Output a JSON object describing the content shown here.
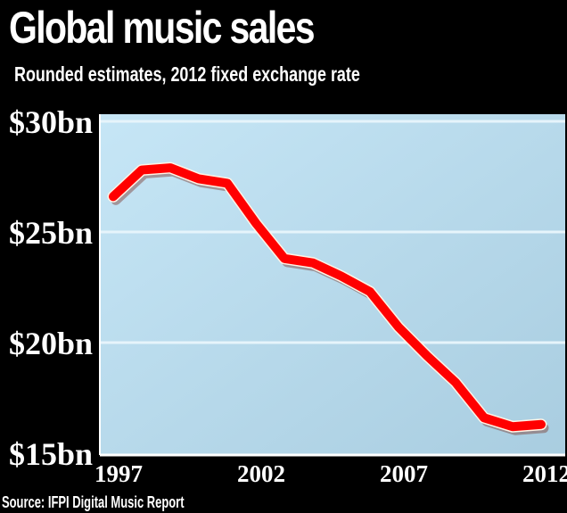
{
  "chart_data": {
    "type": "line",
    "title": "Global music sales",
    "subtitle": "Rounded estimates, 2012 fixed exchange rate",
    "source": "Source: IFPI Digital Music Report",
    "xlabel": "",
    "ylabel": "",
    "x": [
      1997,
      1998,
      1999,
      2000,
      2001,
      2002,
      2003,
      2004,
      2005,
      2006,
      2007,
      2008,
      2009,
      2010,
      2011,
      2012
    ],
    "series": [
      {
        "values": [
          26.6,
          27.8,
          27.9,
          27.4,
          27.2,
          25.4,
          23.8,
          23.6,
          23.0,
          22.3,
          20.7,
          19.4,
          18.2,
          16.6,
          16.2,
          16.3
        ],
        "color": "#ff0000"
      }
    ],
    "xlim": [
      1997,
      2012
    ],
    "ylim": [
      15,
      30
    ],
    "xticks": [
      {
        "value": 1997,
        "label": "1997"
      },
      {
        "value": 2002,
        "label": "2002"
      },
      {
        "value": 2007,
        "label": "2007"
      },
      {
        "value": 2012,
        "label": "2012"
      }
    ],
    "yticks": [
      {
        "value": 30,
        "label": "$30bn"
      },
      {
        "value": 25,
        "label": "$25bn"
      },
      {
        "value": 20,
        "label": "$20bn"
      },
      {
        "value": 15,
        "label": "$15bn"
      }
    ],
    "grid": true,
    "background_color": "#000000",
    "plot_color": "#bfe0f0"
  }
}
